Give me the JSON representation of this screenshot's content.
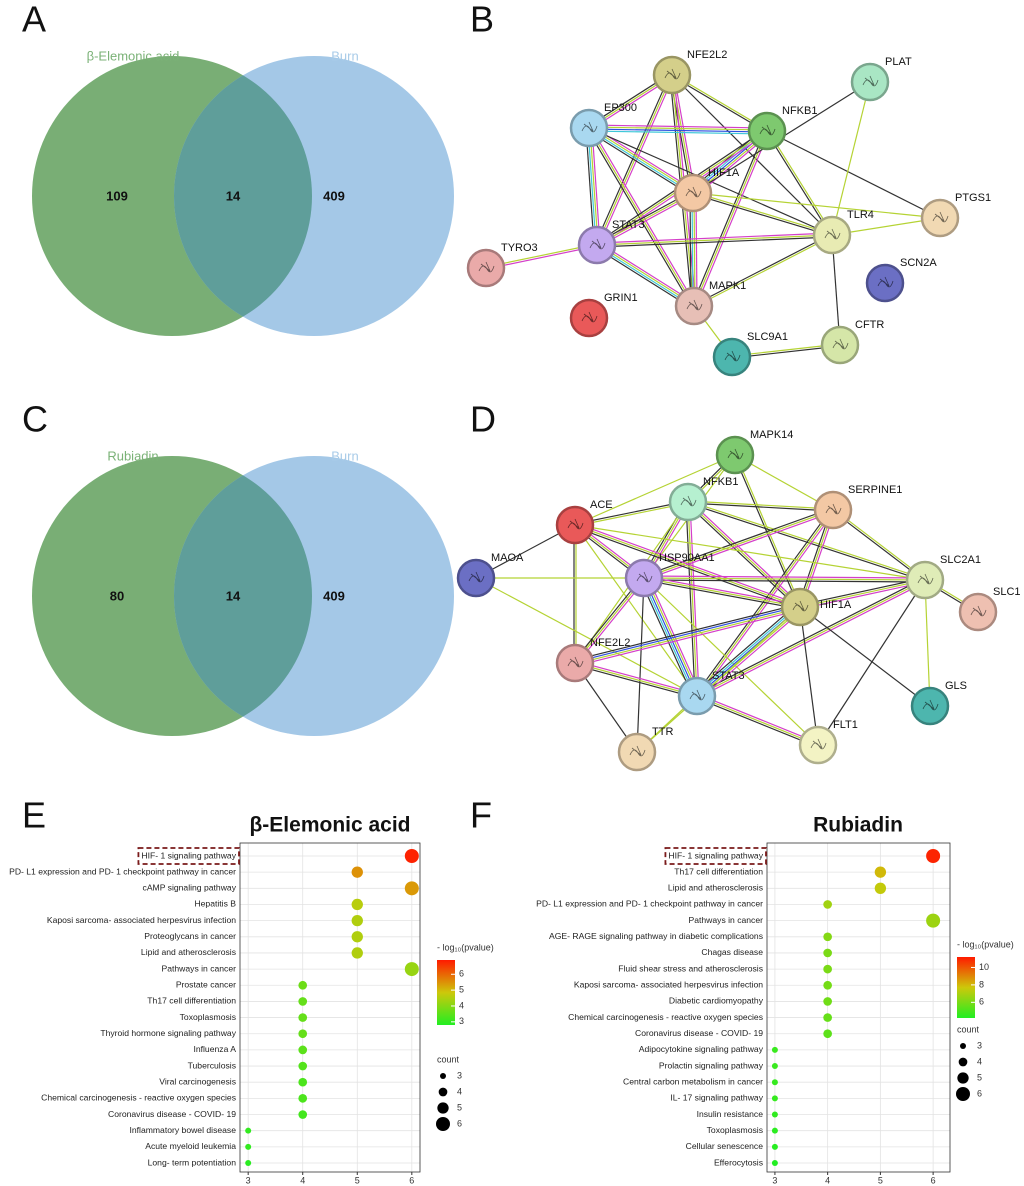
{
  "panels": [
    "A",
    "B",
    "C",
    "D",
    "E",
    "F"
  ],
  "venns": [
    {
      "sets": [
        "β-Elemonic acid",
        "Burn"
      ],
      "values": [
        109,
        14,
        409
      ]
    },
    {
      "sets": [
        "Rubiadin",
        "Burn"
      ],
      "values": [
        80,
        14,
        409
      ]
    }
  ],
  "networks": [
    {
      "nodes": [
        "NFE2L2",
        "PLAT",
        "EP300",
        "NFKB1",
        "HIF1A",
        "PTGS1",
        "STAT3",
        "TLR4",
        "TYRO3",
        "SCN2A",
        "GRIN1",
        "MAPK1",
        "CFTR",
        "SLC9A1"
      ]
    },
    {
      "nodes": [
        "MAPK14",
        "NFKB1",
        "SERPINE1",
        "ACE",
        "MAOA",
        "HSP90AA1",
        "SLC2A1",
        "HIF1A",
        "SLC1",
        "NFE2L2",
        "GLS",
        "STAT3",
        "TTR",
        "FLT1"
      ]
    }
  ],
  "chart_data": [
    {
      "type": "dot",
      "title": "β-Elemonic acid",
      "categories": [
        "HIF- 1 signaling pathway",
        "PD- L1 expression and PD- 1 checkpoint pathway in cancer",
        "cAMP signaling pathway",
        "Hepatitis B",
        "Kaposi sarcoma- associated herpesvirus infection",
        "Proteoglycans in cancer",
        "Lipid and atherosclerosis",
        "Pathways in cancer",
        "Prostate cancer",
        "Th17 cell differentiation",
        "Toxoplasmosis",
        "Thyroid hormone signaling pathway",
        "Influenza A",
        "Tuberculosis",
        "Viral carcinogenesis",
        "Chemical carcinogenesis -  reactive oxygen species",
        "Coronavirus disease -  COVID- 19",
        "Inflammatory bowel disease",
        "Acute myeloid leukemia",
        "Long- term potentiation"
      ],
      "values": [
        6,
        5,
        6,
        5,
        5,
        5,
        5,
        6,
        4,
        4,
        4,
        4,
        4,
        4,
        4,
        4,
        4,
        3,
        3,
        3
      ],
      "color_values": [
        6.8,
        5.5,
        5.4,
        4.6,
        4.5,
        4.5,
        4.5,
        4.2,
        3.7,
        3.6,
        3.6,
        3.6,
        3.5,
        3.4,
        3.3,
        3.3,
        3.2,
        3.0,
        3.0,
        2.9
      ],
      "xlim": [
        2.85,
        6.15
      ],
      "xticks": [
        3,
        4,
        5,
        6
      ],
      "grid": true,
      "colorbar_title": "- log₁₀(pvalue)",
      "colorlim": [
        2.8,
        6.9
      ],
      "colorticks": [
        3,
        4,
        5,
        6
      ],
      "colors": [
        "#22ee22",
        "#ff1a00"
      ],
      "size_title": "count",
      "size_legend": [
        3,
        4,
        5,
        6
      ]
    },
    {
      "type": "dot",
      "title": "Rubiadin",
      "categories": [
        "HIF- 1 signaling pathway",
        "Th17 cell differentiation",
        "Lipid and atherosclerosis",
        "PD- L1 expression and PD- 1 checkpoint pathway in cancer",
        "Pathways in cancer",
        "AGE- RAGE signaling pathway in diabetic complications",
        "Chagas disease",
        "Fluid shear stress and atherosclerosis",
        "Kaposi sarcoma- associated herpesvirus infection",
        "Diabetic cardiomyopathy",
        "Chemical carcinogenesis -  reactive oxygen species",
        "Coronavirus disease -  COVID- 19",
        "Adipocytokine signaling pathway",
        "Prolactin signaling pathway",
        "Central carbon metabolism in cancer",
        "IL- 17 signaling pathway",
        "Insulin resistance",
        "Toxoplasmosis",
        "Cellular senescence",
        "Efferocytosis"
      ],
      "values": [
        6,
        5,
        5,
        4,
        6,
        4,
        4,
        4,
        4,
        4,
        4,
        4,
        3,
        3,
        3,
        3,
        3,
        3,
        3,
        3
      ],
      "color_values": [
        11,
        8,
        7.5,
        6.8,
        6.7,
        6.2,
        6,
        6,
        5.9,
        5.8,
        5.6,
        5.4,
        4.7,
        4.7,
        4.6,
        4.6,
        4.5,
        4.4,
        4.3,
        4.2
      ],
      "xlim": [
        2.85,
        6.32
      ],
      "xticks": [
        3,
        4,
        5,
        6
      ],
      "grid": true,
      "colorbar_title": "- log₁₀(pvalue)",
      "colorlim": [
        4.2,
        11.2
      ],
      "colorticks": [
        6,
        8,
        10
      ],
      "colors": [
        "#22ee22",
        "#ff1a00"
      ],
      "size_title": "count",
      "size_legend": [
        3,
        4,
        5,
        6
      ]
    }
  ]
}
